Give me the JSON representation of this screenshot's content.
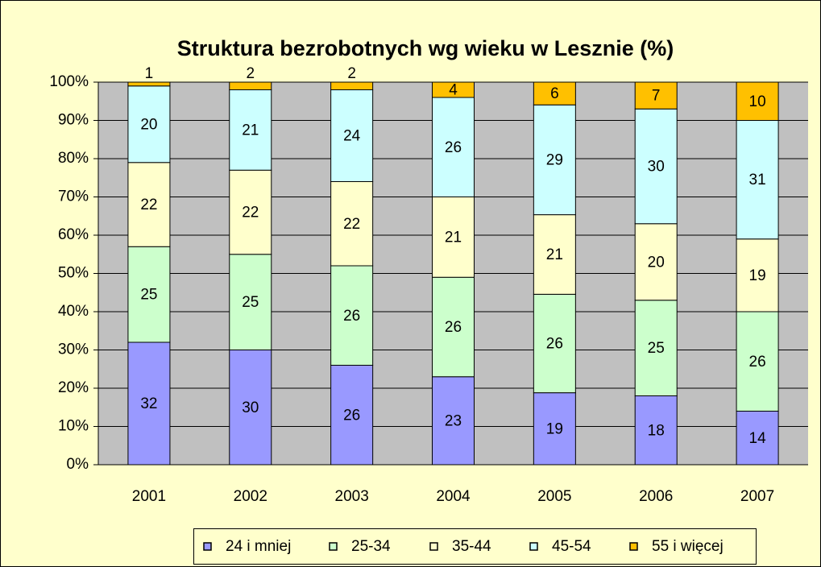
{
  "chart_data": {
    "type": "bar",
    "stacked": "percent",
    "title": "Struktura bezrobotnych wg wieku w Lesznie (%)",
    "categories": [
      "2001",
      "2002",
      "2003",
      "2004",
      "2005",
      "2006",
      "2007"
    ],
    "series": [
      {
        "name": "24 i mniej",
        "color": "#9999ff",
        "values": [
          32,
          30,
          26,
          23,
          19,
          18,
          14
        ]
      },
      {
        "name": "25-34",
        "color": "#ccffcc",
        "values": [
          25,
          25,
          26,
          26,
          26,
          25,
          26
        ]
      },
      {
        "name": "35-44",
        "color": "#ffffcc",
        "values": [
          22,
          22,
          22,
          21,
          21,
          20,
          19
        ]
      },
      {
        "name": "45-54",
        "color": "#ccffff",
        "values": [
          20,
          21,
          24,
          26,
          29,
          30,
          31
        ]
      },
      {
        "name": "55 i więcej",
        "color": "#ffc000",
        "values": [
          1,
          2,
          2,
          4,
          6,
          7,
          10
        ]
      }
    ],
    "ylim": [
      0,
      100
    ],
    "yticks": [
      {
        "value": 0,
        "label": "0%"
      },
      {
        "value": 10,
        "label": "10%"
      },
      {
        "value": 20,
        "label": "20%"
      },
      {
        "value": 30,
        "label": "30%"
      },
      {
        "value": 40,
        "label": "40%"
      },
      {
        "value": 50,
        "label": "50%"
      },
      {
        "value": 60,
        "label": "60%"
      },
      {
        "value": 70,
        "label": "70%"
      },
      {
        "value": 80,
        "label": "80%"
      },
      {
        "value": 90,
        "label": "90%"
      },
      {
        "value": 100,
        "label": "100%"
      }
    ],
    "grid": true,
    "legend": "bottom"
  }
}
